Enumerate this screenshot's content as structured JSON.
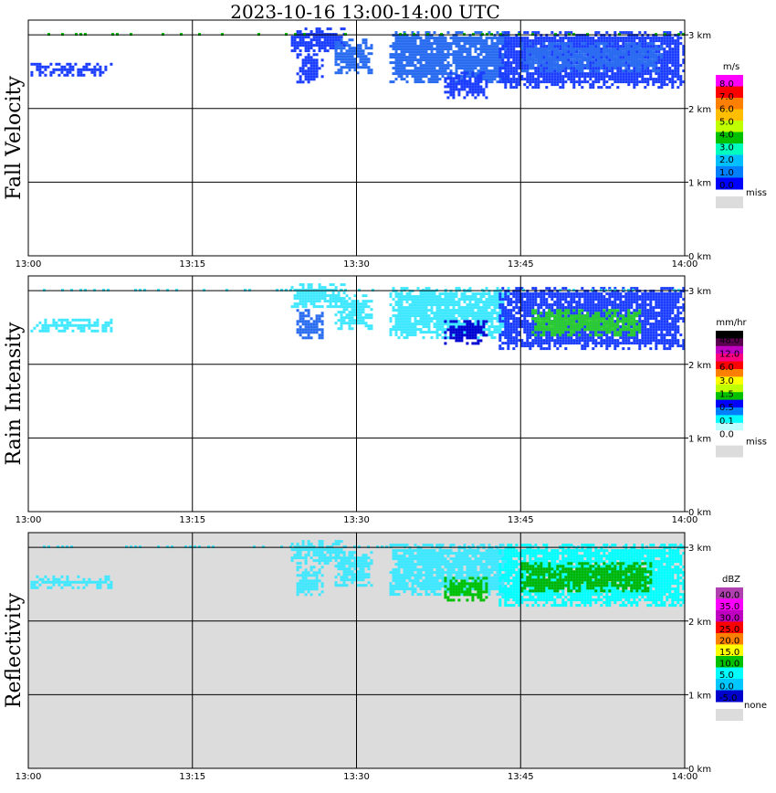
{
  "title": "2023-10-16   13:00-14:00 UTC",
  "chart_data": [
    {
      "type": "heatmap",
      "ylabel": "Fall Velocity",
      "x_ticks": [
        "13:00",
        "13:15",
        "13:30",
        "13:45",
        "14:00"
      ],
      "y_ticks": [
        "0 km",
        "1 km",
        "2 km",
        "3 km"
      ],
      "xlim": [
        0,
        60
      ],
      "ylim": [
        0,
        3.2
      ],
      "missing_background": false,
      "colorbar": {
        "unit": "m/s",
        "labels": [
          "8.0",
          "7.0",
          "6.0",
          "5.0",
          "4.0",
          "3.0",
          "2.0",
          "1.0",
          "0.0"
        ],
        "colors": [
          "#ff00ff",
          "#ff0000",
          "#ff7f00",
          "#ffbf00",
          "#bfff00",
          "#00c000",
          "#00ffbf",
          "#00bfff",
          "#0080ff",
          "#0000ff"
        ],
        "missing_label": "miss",
        "missing_color": "#dcdcdc"
      },
      "echoes": [
        {
          "t0": 0.2,
          "t1": 7.5,
          "z0": 2.45,
          "z1": 2.62,
          "color": "#1a3cff"
        },
        {
          "t0": 24.0,
          "t1": 29.0,
          "z0": 2.8,
          "z1": 3.1,
          "color": "#1a3cff"
        },
        {
          "t0": 24.5,
          "t1": 27.0,
          "z0": 2.35,
          "z1": 2.75,
          "color": "#1a3cff"
        },
        {
          "t0": 28.0,
          "t1": 31.5,
          "z0": 2.5,
          "z1": 2.95,
          "color": "#2a6cf0"
        },
        {
          "t0": 33.0,
          "t1": 44.0,
          "z0": 2.35,
          "z1": 3.05,
          "color": "#2a6cf0"
        },
        {
          "t0": 38.0,
          "t1": 42.0,
          "z0": 2.15,
          "z1": 2.5,
          "color": "#1a3cff"
        },
        {
          "t0": 43.0,
          "t1": 60.0,
          "z0": 2.3,
          "z1": 3.05,
          "color": "#1a3cff"
        },
        {
          "t0": 45.0,
          "t1": 58.0,
          "z0": 2.5,
          "z1": 2.9,
          "color": "#2a6cf0"
        }
      ],
      "surface_dots": [
        {
          "t0": 0.5,
          "t1": 60,
          "z": 3.0,
          "color": "#00c000"
        }
      ]
    },
    {
      "type": "heatmap",
      "ylabel": "Rain Intensity",
      "x_ticks": [
        "13:00",
        "13:15",
        "13:30",
        "13:45",
        "14:00"
      ],
      "y_ticks": [
        "0 km",
        "1 km",
        "2 km",
        "3 km"
      ],
      "xlim": [
        0,
        60
      ],
      "ylim": [
        0,
        3.2
      ],
      "missing_background": false,
      "colorbar": {
        "unit": "mm/hr",
        "labels": [
          "48.0",
          "12.0",
          "6.0",
          "3.0",
          "1.5",
          "0.5",
          "0.1",
          "0.0"
        ],
        "colors": [
          "#000000",
          "#5a0050",
          "#c000c0",
          "#ff0080",
          "#ff0000",
          "#ff8000",
          "#ffff00",
          "#bfff00",
          "#00c000",
          "#0000ff",
          "#0080ff",
          "#00ffff",
          "#c0ffff",
          "#ffffff"
        ],
        "missing_label": "miss",
        "missing_color": "#dcdcdc"
      },
      "echoes": [
        {
          "t0": 0.2,
          "t1": 7.5,
          "z0": 2.45,
          "z1": 2.62,
          "color": "#40e8ff"
        },
        {
          "t0": 24.0,
          "t1": 29.0,
          "z0": 2.8,
          "z1": 3.1,
          "color": "#40e8ff"
        },
        {
          "t0": 24.5,
          "t1": 27.0,
          "z0": 2.35,
          "z1": 2.75,
          "color": "#2a6cf0"
        },
        {
          "t0": 28.0,
          "t1": 31.5,
          "z0": 2.5,
          "z1": 2.95,
          "color": "#40e8ff"
        },
        {
          "t0": 33.0,
          "t1": 44.0,
          "z0": 2.35,
          "z1": 3.05,
          "color": "#40e8ff"
        },
        {
          "t0": 38.0,
          "t1": 42.0,
          "z0": 2.3,
          "z1": 2.6,
          "color": "#0000d0"
        },
        {
          "t0": 43.0,
          "t1": 60.0,
          "z0": 2.2,
          "z1": 3.05,
          "color": "#1a3cff"
        },
        {
          "t0": 46.0,
          "t1": 56.0,
          "z0": 2.4,
          "z1": 2.75,
          "color": "#2ad02a"
        }
      ],
      "surface_dots": [
        {
          "t0": 0.5,
          "t1": 60,
          "z": 3.0,
          "color": "#40e8ff"
        }
      ]
    },
    {
      "type": "heatmap",
      "ylabel": "Reflectivity",
      "x_ticks": [
        "13:00",
        "13:15",
        "13:30",
        "13:45",
        "14:00"
      ],
      "y_ticks": [
        "0 km",
        "1 km",
        "2 km",
        "3 km"
      ],
      "xlim": [
        0,
        60
      ],
      "ylim": [
        0,
        3.2
      ],
      "missing_background": true,
      "colorbar": {
        "unit": "dBZ",
        "labels": [
          "40.0",
          "35.0",
          "30.0",
          "25.0",
          "20.0",
          "15.0",
          "10.0",
          "5.0",
          "0.0",
          "-5.0"
        ],
        "colors": [
          "#b040b0",
          "#ff00ff",
          "#c000c0",
          "#ff0000",
          "#ff8000",
          "#ffff00",
          "#00c000",
          "#00ffff",
          "#00c8ff",
          "#0000cc"
        ],
        "missing_label": "none",
        "missing_color": "#dcdcdc"
      },
      "echoes": [
        {
          "t0": 0.2,
          "t1": 7.5,
          "z0": 2.45,
          "z1": 2.62,
          "color": "#40e8ff"
        },
        {
          "t0": 24.0,
          "t1": 29.0,
          "z0": 2.8,
          "z1": 3.1,
          "color": "#40e8ff"
        },
        {
          "t0": 24.5,
          "t1": 27.0,
          "z0": 2.35,
          "z1": 2.75,
          "color": "#40e8ff"
        },
        {
          "t0": 28.0,
          "t1": 31.5,
          "z0": 2.5,
          "z1": 2.95,
          "color": "#40e8ff"
        },
        {
          "t0": 33.0,
          "t1": 44.0,
          "z0": 2.35,
          "z1": 3.05,
          "color": "#40e8ff"
        },
        {
          "t0": 38.0,
          "t1": 42.0,
          "z0": 2.3,
          "z1": 2.6,
          "color": "#00c000"
        },
        {
          "t0": 43.0,
          "t1": 60.0,
          "z0": 2.2,
          "z1": 3.05,
          "color": "#00ffff"
        },
        {
          "t0": 45.0,
          "t1": 57.0,
          "z0": 2.4,
          "z1": 2.8,
          "color": "#00b400"
        }
      ],
      "surface_dots": [
        {
          "t0": 0.5,
          "t1": 60,
          "z": 3.0,
          "color": "#40e8ff"
        }
      ]
    }
  ]
}
